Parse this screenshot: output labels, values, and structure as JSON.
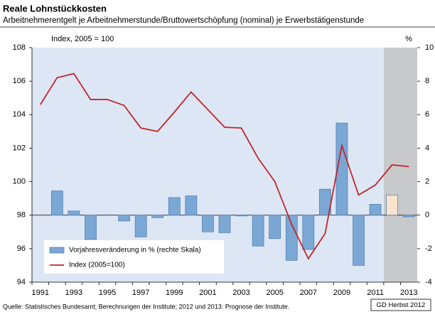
{
  "chart_data": {
    "type": "bar_line",
    "title": "Reale Lohnstückkosten",
    "subtitle": "Arbeitnehmerentgelt je Arbeitnehmerstunde/Bruttowertschöpfung (nominal) je Erwerbstätigenstunde",
    "y_label": "Index, 2005 = 100",
    "y2_label": "%",
    "source": "Quelle: Statistisches Bundesamt; Berechnungen der Institute; 2012 und 2013: Prognose der Institute.",
    "credit": "GD Herbst 2012",
    "categories": [
      "1991",
      null,
      "1993",
      null,
      "1995",
      null,
      "1997",
      null,
      "1999",
      null,
      "2001",
      null,
      "2003",
      null,
      "2005",
      null,
      "2007",
      null,
      "2009",
      null,
      "2011",
      null,
      "2013"
    ],
    "series": [
      {
        "name": "Vorjahresveränderung in % (rechte Skala)",
        "type": "bar",
        "axis": "y2",
        "color": "#7ba7d4",
        "colors": [
          "#7ba7d4",
          "#7ba7d4",
          "#7ba7d4",
          "#7ba7d4",
          "#7ba7d4",
          "#7ba7d4",
          "#7ba7d4",
          "#7ba7d4",
          "#7ba7d4",
          "#7ba7d4",
          "#7ba7d4",
          "#7ba7d4",
          "#7ba7d4",
          "#7ba7d4",
          "#7ba7d4",
          "#7ba7d4",
          "#7ba7d4",
          "#7ba7d4",
          "#7ba7d4",
          "#7ba7d4",
          "#7ba7d4",
          "#fbe3cc",
          "#7ba7d4"
        ],
        "values": [
          null,
          1.45,
          0.25,
          -1.45,
          null,
          -0.35,
          -1.3,
          -0.15,
          1.05,
          1.15,
          -1.0,
          -1.05,
          -0.05,
          -1.85,
          -1.4,
          -2.7,
          -2.05,
          1.55,
          5.5,
          -3.0,
          0.65,
          1.2,
          -0.1
        ]
      },
      {
        "name": "Index (2005=100)",
        "type": "line",
        "axis": "y",
        "color": "#c0262d",
        "values": [
          104.6,
          106.2,
          106.45,
          104.9,
          104.9,
          104.55,
          103.2,
          103.0,
          104.15,
          105.35,
          104.3,
          103.25,
          103.2,
          101.4,
          100.0,
          97.45,
          95.4,
          96.9,
          102.15,
          99.2,
          99.8,
          101.0,
          100.9
        ]
      }
    ],
    "ylim": [
      94,
      108
    ],
    "yticks": [
      94,
      96,
      98,
      100,
      102,
      104,
      106,
      108
    ],
    "y2lim": [
      -4,
      10
    ],
    "y2ticks": [
      -4,
      -2,
      0,
      2,
      4,
      6,
      8,
      10
    ],
    "background": "#dde6f4",
    "forecast_color": "#c8c9cb"
  }
}
